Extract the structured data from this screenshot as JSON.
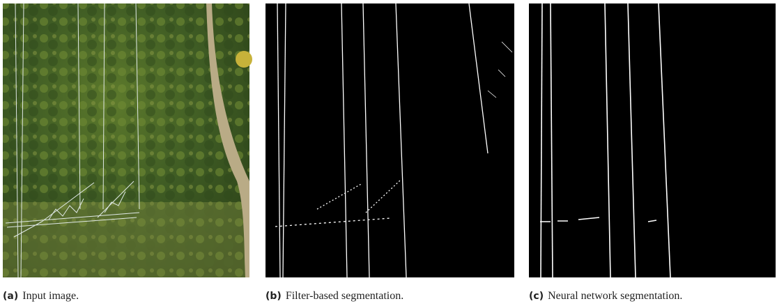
{
  "panels": [
    {
      "label": "(a)",
      "caption": "Input image."
    },
    {
      "label": "(b)",
      "caption": "Filter-based segmentation."
    },
    {
      "label": "(c)",
      "caption": "Neural network segmentation."
    }
  ]
}
